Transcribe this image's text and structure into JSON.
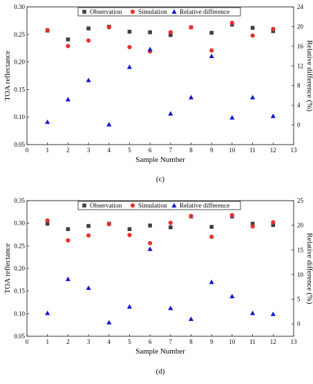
{
  "colors": {
    "observation": "#404040",
    "simulation": "#e8302e",
    "relative_difference": "#1414d4",
    "axis": "#000000"
  },
  "chart_data": [
    {
      "type": "scatter",
      "panel_label": "(c)",
      "xlabel": "Sample Number",
      "ylabel": "TOA reflectance",
      "y2label": "Relative difference (%)",
      "xlim": [
        0,
        13
      ],
      "ylim": [
        0.05,
        0.3
      ],
      "y2lim": [
        -4,
        24
      ],
      "xticks": [
        "0",
        "1",
        "2",
        "3",
        "4",
        "5",
        "6",
        "7",
        "8",
        "9",
        "10",
        "11",
        "12",
        "13"
      ],
      "yticks": [
        "0.05",
        "0.10",
        "0.15",
        "0.20",
        "0.25",
        "0.30"
      ],
      "y2ticks": [
        "0",
        "4",
        "8",
        "12",
        "16",
        "20",
        "24"
      ],
      "legend": [
        "Observation",
        "Simulation",
        "Relative difference"
      ],
      "legend_position": "top-center",
      "x": [
        1,
        2,
        3,
        4,
        5,
        6,
        7,
        8,
        9,
        10,
        11,
        12
      ],
      "series": [
        {
          "name": "Observation",
          "axis": "left",
          "marker": "square",
          "values": [
            0.257,
            0.241,
            0.261,
            0.264,
            0.255,
            0.254,
            0.249,
            0.263,
            0.253,
            0.268,
            0.262,
            0.256
          ]
        },
        {
          "name": "Simulation",
          "axis": "left",
          "marker": "circle",
          "values": [
            0.258,
            0.229,
            0.239,
            0.263,
            0.227,
            0.219,
            0.254,
            0.263,
            0.221,
            0.271,
            0.248,
            0.26
          ]
        },
        {
          "name": "Relative difference",
          "axis": "right",
          "marker": "triangle",
          "values": [
            0.6,
            5.2,
            9.1,
            0.1,
            11.8,
            15.4,
            2.3,
            5.6,
            14.0,
            1.5,
            5.6,
            1.8
          ]
        }
      ]
    },
    {
      "type": "scatter",
      "panel_label": "(d)",
      "xlabel": "Sample Number",
      "ylabel": "TOA reflectance",
      "y2label": "Relative difference (%)",
      "xlim": [
        0,
        13
      ],
      "ylim": [
        0.05,
        0.35
      ],
      "y2lim": [
        -2.5,
        25
      ],
      "xticks": [
        "0",
        "1",
        "2",
        "3",
        "4",
        "5",
        "6",
        "7",
        "8",
        "9",
        "10",
        "11",
        "12",
        "13"
      ],
      "yticks": [
        "0.05",
        "0.10",
        "0.15",
        "0.20",
        "0.25",
        "0.30",
        "0.35"
      ],
      "y2ticks": [
        "0",
        "5",
        "10",
        "15",
        "20",
        "25"
      ],
      "legend": [
        "Observation",
        "Simulation",
        "Relative difference"
      ],
      "legend_position": "top-center",
      "x": [
        1,
        2,
        3,
        4,
        5,
        6,
        7,
        8,
        9,
        10,
        11,
        12
      ],
      "series": [
        {
          "name": "Observation",
          "axis": "left",
          "marker": "square",
          "values": [
            0.299,
            0.287,
            0.294,
            0.299,
            0.287,
            0.295,
            0.291,
            0.315,
            0.292,
            0.315,
            0.299,
            0.296
          ]
        },
        {
          "name": "Simulation",
          "axis": "left",
          "marker": "circle",
          "values": [
            0.306,
            0.262,
            0.273,
            0.298,
            0.274,
            0.256,
            0.301,
            0.316,
            0.27,
            0.318,
            0.293,
            0.302
          ]
        },
        {
          "name": "Relative difference",
          "axis": "right",
          "marker": "triangle",
          "values": [
            2.2,
            9.1,
            7.3,
            0.3,
            3.5,
            15.2,
            3.2,
            1.0,
            8.5,
            5.6,
            2.2,
            2.0
          ]
        }
      ]
    }
  ]
}
